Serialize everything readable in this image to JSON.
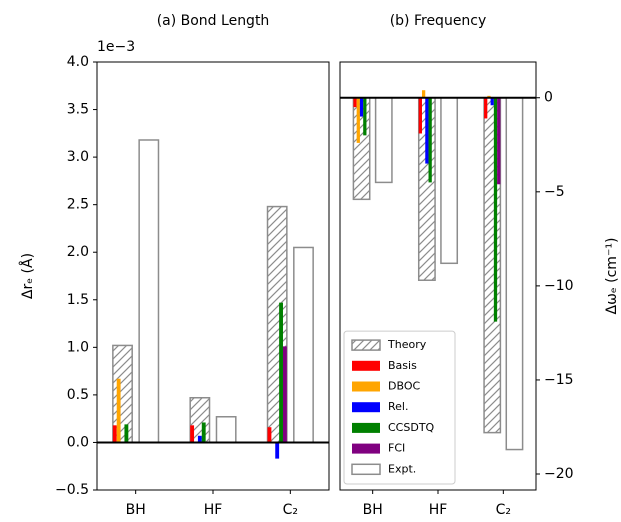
{
  "chart_data": [
    {
      "type": "bar",
      "title": "(a) Bond Length",
      "ylabel": "Δrₑ (Å)",
      "offset_text": "1e−3",
      "axis_side": "left",
      "categories": [
        "BH",
        "HF",
        "C₂"
      ],
      "ylim": [
        -0.5,
        4.0
      ],
      "yticks": [
        {
          "value": -0.5,
          "label": "−0.5"
        },
        {
          "value": 0,
          "label": "0.0"
        },
        0.5,
        {
          "value": 1,
          "label": "1.0"
        },
        1.5,
        {
          "value": 2,
          "label": "2.0"
        },
        2.5,
        {
          "value": 3,
          "label": "3.0"
        },
        3.5,
        {
          "value": 4,
          "label": "4.0"
        }
      ],
      "series": [
        {
          "color": "#8c8c8c",
          "hatch": "/",
          "values": [
            1.02,
            0.47,
            2.48
          ]
        },
        {
          "color": "#ff0000",
          "values": [
            0.18,
            0.18,
            0.16
          ]
        },
        {
          "color": "#ffa500",
          "values": [
            0.67,
            0.01,
            0.01
          ]
        },
        {
          "color": "#0000ff",
          "values": [
            0.0,
            0.07,
            -0.17
          ]
        },
        {
          "color": "#008000",
          "values": [
            0.19,
            0.21,
            1.47
          ]
        },
        {
          "color": "#800080",
          "values": [
            0.0,
            0.0,
            1.01
          ]
        },
        {
          "color": "#8c8c8c",
          "hatch": "\\",
          "values": [
            3.18,
            0.27,
            2.05
          ]
        }
      ]
    },
    {
      "type": "bar",
      "title": "(b) Frequency",
      "ylabel": "Δωₑ (cm⁻¹)",
      "axis_side": "right",
      "legend": "lower left",
      "categories": [
        "BH",
        "HF",
        "C₂"
      ],
      "ylim": [
        -20.85,
        1.9
      ],
      "yticks": [
        {
          "value": -20,
          "label": "−20"
        },
        {
          "value": -15,
          "label": "−15"
        },
        {
          "value": -10,
          "label": "−10"
        },
        {
          "value": -5,
          "label": "−5"
        },
        0
      ],
      "series": [
        {
          "name": "Theory",
          "color": "#8c8c8c",
          "hatch": "/",
          "values": [
            -5.4,
            -9.7,
            -17.8
          ]
        },
        {
          "name": "Basis",
          "color": "#ff0000",
          "values": [
            -0.5,
            -1.9,
            -1.1
          ]
        },
        {
          "name": "DBOC",
          "color": "#ffa500",
          "values": [
            -2.4,
            0.4,
            0.1
          ]
        },
        {
          "name": "Rel.",
          "color": "#0000ff",
          "values": [
            -1.0,
            -3.5,
            -0.4
          ]
        },
        {
          "name": "CCSDTQ",
          "color": "#008000",
          "values": [
            -2.0,
            -4.5,
            -11.9
          ]
        },
        {
          "name": "FCI",
          "color": "#800080",
          "values": [
            0.0,
            0.0,
            -4.6
          ]
        },
        {
          "name": "Expt.",
          "color": "#8c8c8c",
          "hatch": "\\",
          "values": [
            -4.5,
            -8.8,
            -18.7
          ]
        }
      ]
    }
  ]
}
